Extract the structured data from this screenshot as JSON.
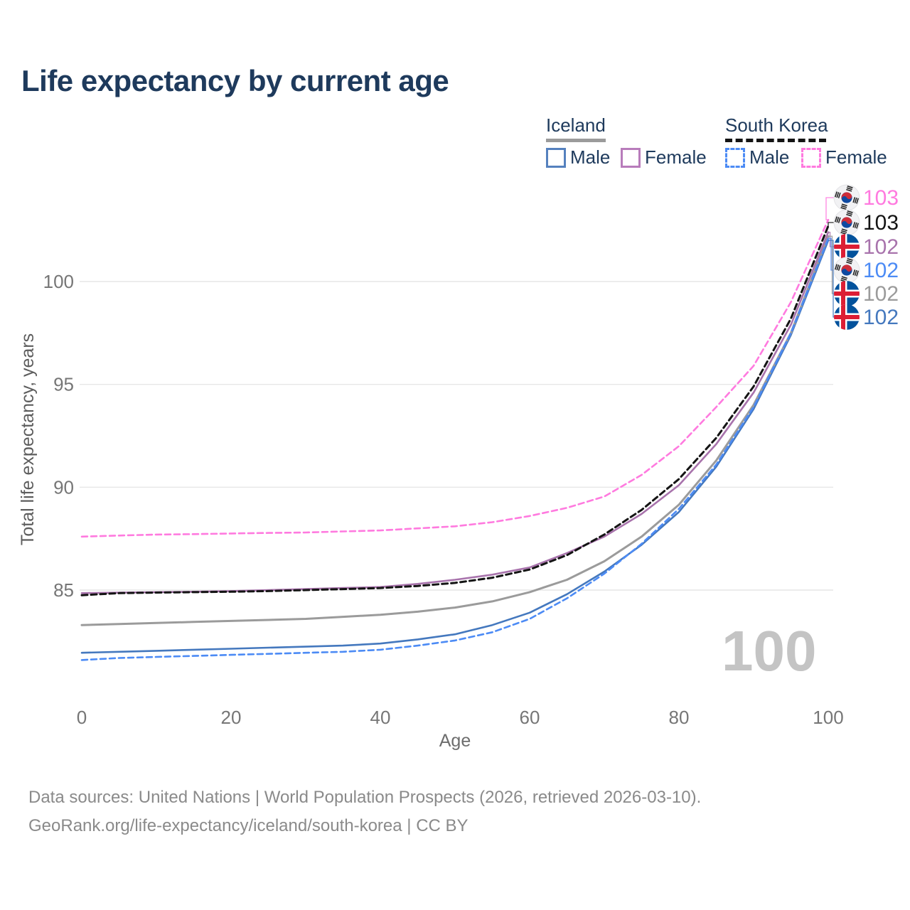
{
  "title": "Life expectancy by current age",
  "legend": {
    "iceland": {
      "label": "Iceland",
      "male": "Male",
      "female": "Female"
    },
    "south_korea": {
      "label": "South Korea",
      "male": "Male",
      "female": "Female"
    }
  },
  "watermark": "100",
  "footer": {
    "line1": "Data sources: United Nations | World Population Prospects (2026, retrieved 2026-03-10).",
    "line2": "GeoRank.org/life-expectancy/iceland/south-korea | CC BY"
  },
  "colors": {
    "title_text": "#1e3a5c",
    "tick_text": "#767676",
    "gridline": "#e6e6e6",
    "footer_text": "#8a8a8a",
    "watermark": "#c4c4c4",
    "iceland_male": "#4478BE",
    "iceland_female": "#A873AC",
    "iceland_both": "#9B9B9B",
    "south_korea_male": "#4C8BF5",
    "south_korea_female": "#FF7ADF",
    "south_korea_both": "#141414"
  },
  "chart_data": {
    "type": "line",
    "title": "Life expectancy by current age",
    "xlabel": "Age",
    "ylabel": "Total life expectancy, years",
    "x_ticks": [
      0,
      20,
      40,
      60,
      80,
      100
    ],
    "y_ticks": [
      85,
      90,
      95,
      100
    ],
    "xlim": [
      0,
      100
    ],
    "ylim": [
      81.5,
      104
    ],
    "grid": "horizontal",
    "legend_position": "top-right",
    "ages": [
      0,
      5,
      10,
      15,
      20,
      25,
      30,
      35,
      40,
      45,
      50,
      55,
      60,
      65,
      70,
      75,
      80,
      85,
      90,
      95,
      100
    ],
    "series": [
      {
        "name": "South Korea Female",
        "country": "South Korea",
        "sex": "Female",
        "style": "dashed",
        "color": "#FF7ADF",
        "flag": "kr",
        "end_label": "103",
        "values": [
          87.6,
          87.65,
          87.7,
          87.72,
          87.75,
          87.78,
          87.8,
          87.85,
          87.9,
          88.0,
          88.1,
          88.3,
          88.6,
          89.0,
          89.55,
          90.6,
          92.0,
          93.9,
          95.9,
          99.0,
          103.0
        ]
      },
      {
        "name": "South Korea Both sexes",
        "country": "South Korea",
        "sex": "Both",
        "style": "dashed",
        "color": "#141414",
        "flag": "kr",
        "end_label": "103",
        "values": [
          84.75,
          84.85,
          84.88,
          84.9,
          84.92,
          84.95,
          85.0,
          85.05,
          85.1,
          85.2,
          85.35,
          85.6,
          86.0,
          86.7,
          87.7,
          88.9,
          90.4,
          92.4,
          94.9,
          98.2,
          102.7
        ]
      },
      {
        "name": "Iceland Female",
        "country": "Iceland",
        "sex": "Female",
        "style": "solid",
        "color": "#A873AC",
        "flag": "is",
        "end_label": "102",
        "values": [
          84.85,
          84.88,
          84.9,
          84.92,
          84.95,
          85.0,
          85.05,
          85.1,
          85.15,
          85.3,
          85.5,
          85.75,
          86.1,
          86.8,
          87.6,
          88.7,
          90.1,
          92.1,
          94.6,
          97.9,
          102.4
        ]
      },
      {
        "name": "South Korea Male",
        "country": "South Korea",
        "sex": "Male",
        "style": "dashed",
        "color": "#4C8BF5",
        "flag": "kr",
        "end_label": "102",
        "values": [
          81.6,
          81.7,
          81.75,
          81.8,
          81.85,
          81.9,
          81.95,
          82.0,
          82.1,
          82.3,
          82.55,
          82.95,
          83.6,
          84.6,
          85.8,
          87.25,
          88.95,
          91.1,
          93.9,
          97.5,
          102.1
        ]
      },
      {
        "name": "Iceland Both sexes",
        "country": "Iceland",
        "sex": "Both",
        "style": "solid",
        "color": "#9B9B9B",
        "flag": "is",
        "end_label": "102",
        "values": [
          83.3,
          83.35,
          83.4,
          83.45,
          83.5,
          83.55,
          83.6,
          83.7,
          83.8,
          83.95,
          84.15,
          84.45,
          84.9,
          85.5,
          86.4,
          87.6,
          89.15,
          91.3,
          94.0,
          97.5,
          102.2
        ]
      },
      {
        "name": "Iceland Male",
        "country": "Iceland",
        "sex": "Male",
        "style": "solid",
        "color": "#4478BE",
        "flag": "is",
        "end_label": "102",
        "values": [
          81.95,
          82.0,
          82.05,
          82.1,
          82.15,
          82.2,
          82.25,
          82.3,
          82.4,
          82.6,
          82.85,
          83.3,
          83.9,
          84.8,
          85.9,
          87.2,
          88.8,
          91.0,
          93.8,
          97.4,
          102.0
        ]
      }
    ]
  }
}
